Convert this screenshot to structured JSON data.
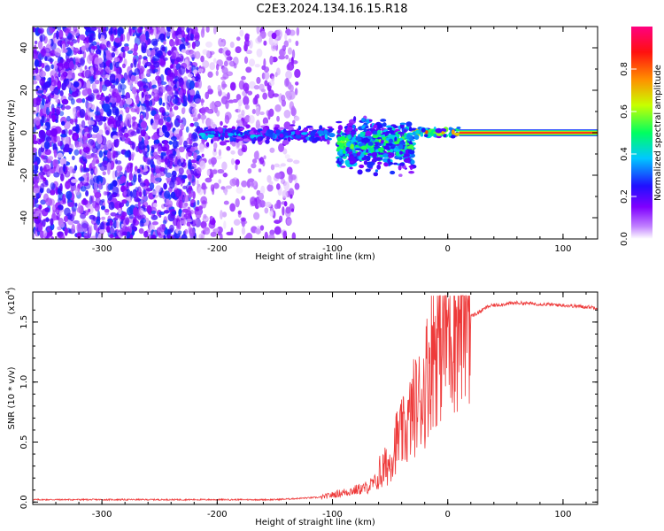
{
  "figure_title": "C2E3.2024.134.16.15.R18",
  "chart_data": [
    {
      "type": "heatmap",
      "xlabel": "Height of straight line (km)",
      "ylabel": "Frequency (Hz)",
      "xlim": [
        -360,
        130
      ],
      "ylim": [
        -50,
        50
      ],
      "x_ticks": [
        -300,
        -200,
        -100,
        0,
        100
      ],
      "y_ticks": [
        -40,
        -20,
        0,
        20,
        40
      ],
      "colorbar": {
        "label": "Normalized spectral amplitude",
        "range": [
          0,
          1
        ],
        "ticks": [
          "0.0",
          "0.2",
          "0.4",
          "0.6",
          "0.8"
        ],
        "colormap": [
          "#ffffff",
          "#8000ff",
          "#2000ff",
          "#00c8ff",
          "#00ff60",
          "#c8ff00",
          "#ff9000",
          "#ff0000",
          "#ff0080"
        ]
      },
      "regions": [
        {
          "x_range": [
            -360,
            -215
          ],
          "freq_range": [
            -50,
            50
          ],
          "amplitude": 0.1,
          "pattern": "scattered noise"
        },
        {
          "x_range": [
            -215,
            -130
          ],
          "freq_range": [
            -50,
            50
          ],
          "amplitude": 0.05,
          "pattern": "faint scattered noise"
        },
        {
          "x_range": [
            -215,
            -100
          ],
          "freq_range": [
            -6,
            4
          ],
          "amplitude": 0.35,
          "pattern": "signal band"
        },
        {
          "x_range": [
            -95,
            -30
          ],
          "freq_range": [
            -22,
            10
          ],
          "amplitude": 0.5,
          "pattern": "spread signal"
        },
        {
          "x_range": [
            -30,
            10
          ],
          "freq_range": [
            -3,
            3
          ],
          "amplitude": 0.7,
          "pattern": "narrowing signal"
        },
        {
          "x_range": [
            10,
            130
          ],
          "freq_range": [
            -1.5,
            1.5
          ],
          "amplitude": 0.9,
          "pattern": "steady line"
        }
      ]
    },
    {
      "type": "line",
      "xlabel": "Height of straight line (km)",
      "ylabel": "SNR (10 * v/v)",
      "y_multiplier": "(x10",
      "y_multiplier_exp": "4",
      "xlim": [
        -360,
        130
      ],
      "ylim": [
        -0.02,
        1.75
      ],
      "x_ticks": [
        -300,
        -200,
        -100,
        0,
        100
      ],
      "y_ticks": [
        "0.0",
        "0.5",
        "1.0",
        "1.5"
      ],
      "color": "#ee3a3a",
      "series": [
        {
          "x": [
            -360,
            -250,
            -150,
            -110,
            -90,
            -70,
            -60,
            -50,
            -45,
            -40,
            -35,
            -30,
            -25,
            -20,
            -15,
            -10,
            -5,
            0,
            5,
            10,
            15,
            20,
            25,
            30,
            35,
            40,
            50,
            60,
            80,
            100,
            130
          ],
          "y": [
            0.02,
            0.02,
            0.02,
            0.04,
            0.08,
            0.12,
            0.18,
            0.3,
            0.45,
            0.5,
            0.55,
            0.7,
            0.75,
            0.85,
            1.1,
            1.2,
            1.25,
            1.3,
            1.35,
            1.4,
            1.5,
            1.55,
            1.57,
            1.6,
            1.63,
            1.64,
            1.65,
            1.66,
            1.65,
            1.64,
            1.62
          ]
        }
      ]
    }
  ]
}
